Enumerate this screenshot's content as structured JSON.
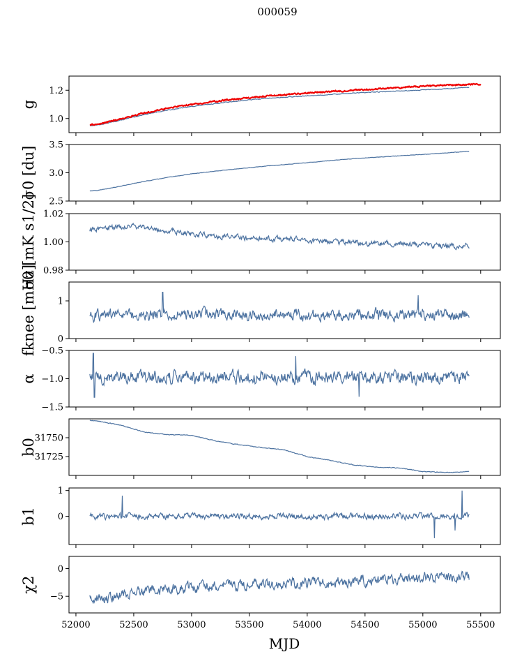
{
  "figure": {
    "title": "000059",
    "xlabel": "MJD"
  },
  "x_axis": {
    "range": [
      51940,
      55670
    ],
    "ticks": [
      52000,
      52500,
      53000,
      53500,
      54000,
      54500,
      55000,
      55500
    ],
    "tick_labels": [
      "52000",
      "52500",
      "53000",
      "53500",
      "54000",
      "54500",
      "55000",
      "55500"
    ]
  },
  "colors": {
    "series": "#4c72a0",
    "red": "#ee0000"
  },
  "chart_data": [
    {
      "type": "line",
      "id": "g",
      "ylabel": "g",
      "ylim": [
        0.9,
        1.3
      ],
      "yticks": [
        1.0,
        1.2
      ],
      "ytick_labels": [
        "1.0",
        "1.2"
      ],
      "series": [
        {
          "name": "g",
          "color": "#4c72a0",
          "x": [
            52120,
            52200,
            52400,
            52600,
            52800,
            53000,
            53300,
            53600,
            54000,
            54400,
            54800,
            55200,
            55400
          ],
          "values": [
            0.95,
            0.955,
            0.99,
            1.03,
            1.06,
            1.085,
            1.115,
            1.14,
            1.16,
            1.18,
            1.195,
            1.21,
            1.22
          ],
          "noise": 0.002
        },
        {
          "name": "g_reference",
          "color": "#ee0000",
          "x": [
            52120,
            52200,
            52400,
            52600,
            52800,
            53000,
            53300,
            53600,
            54000,
            54400,
            54800,
            55200,
            55500
          ],
          "values": [
            0.955,
            0.96,
            1.0,
            1.04,
            1.075,
            1.1,
            1.13,
            1.155,
            1.18,
            1.2,
            1.22,
            1.235,
            1.245
          ],
          "noise": 0.004
        }
      ]
    },
    {
      "type": "line",
      "id": "sigma0_du",
      "ylabel": "σ0 [du]",
      "ylim": [
        2.5,
        3.5
      ],
      "yticks": [
        2.5,
        3.0,
        3.5
      ],
      "ytick_labels": [
        "2.5",
        "3.0",
        "3.5"
      ],
      "series": [
        {
          "name": "sigma0",
          "color": "#4c72a0",
          "x": [
            52120,
            52200,
            52400,
            52600,
            52800,
            53000,
            53300,
            53600,
            54000,
            54400,
            54800,
            55200,
            55400
          ],
          "values": [
            2.68,
            2.69,
            2.77,
            2.85,
            2.92,
            2.98,
            3.05,
            3.11,
            3.18,
            3.25,
            3.3,
            3.35,
            3.38
          ],
          "noise": 0.003
        }
      ]
    },
    {
      "type": "line",
      "id": "sigma0_mk",
      "ylabel": "σ0 [mK s1/2]",
      "ylim": [
        0.98,
        1.02
      ],
      "yticks": [
        0.98,
        1.0,
        1.02
      ],
      "ytick_labels": [
        "0.98",
        "1.00",
        "1.02"
      ],
      "series": [
        {
          "name": "sigma0_norm",
          "color": "#4c72a0",
          "x": [
            52120,
            52300,
            52500,
            52700,
            52900,
            53100,
            53300,
            53600,
            53900,
            54200,
            54500,
            54800,
            55100,
            55400
          ],
          "values": [
            1.009,
            1.01,
            1.011,
            1.009,
            1.007,
            1.005,
            1.004,
            1.002,
            1.002,
            1.0,
            0.999,
            0.999,
            0.997,
            0.997
          ],
          "noise": 0.0015
        }
      ]
    },
    {
      "type": "line",
      "id": "fknee",
      "ylabel": "fknee [mHz]",
      "ylim": [
        0,
        1.5
      ],
      "yticks": [
        0,
        1
      ],
      "ytick_labels": [
        "0",
        "1"
      ],
      "series": [
        {
          "name": "fknee",
          "color": "#4c72a0",
          "x": [
            52120,
            55400
          ],
          "values": [
            0.62,
            0.62
          ],
          "noise": 0.12,
          "spikes": [
            [
              52750,
              1.23
            ],
            [
              54960,
              1.15
            ]
          ]
        }
      ]
    },
    {
      "type": "line",
      "id": "alpha",
      "ylabel": "α",
      "ylim": [
        -1.5,
        -0.5
      ],
      "yticks": [
        -1.5,
        -1.0,
        -0.5
      ],
      "ytick_labels": [
        "−1.5",
        "−1.0",
        "−0.5"
      ],
      "series": [
        {
          "name": "alpha",
          "color": "#4c72a0",
          "x": [
            52120,
            55400
          ],
          "values": [
            -0.97,
            -0.97
          ],
          "noise": 0.09,
          "spikes": [
            [
              52150,
              -0.55
            ],
            [
              52160,
              -1.33
            ],
            [
              54450,
              -1.32
            ],
            [
              53900,
              -0.6
            ]
          ]
        }
      ]
    },
    {
      "type": "line",
      "id": "b0",
      "ylabel": "b0",
      "ylim": [
        31700,
        31775
      ],
      "yticks": [
        31725,
        31750
      ],
      "ytick_labels": [
        "31725",
        "31750"
      ],
      "series": [
        {
          "name": "b0",
          "color": "#4c72a0",
          "x": [
            52120,
            52200,
            52400,
            52600,
            52800,
            53000,
            53200,
            53400,
            53600,
            53800,
            54000,
            54200,
            54400,
            54600,
            54800,
            55000,
            55200,
            55400
          ],
          "values": [
            31773,
            31772,
            31766,
            31757,
            31754,
            31753,
            31746,
            31741,
            31737,
            31734,
            31725,
            31720,
            31714,
            31711,
            31710,
            31705,
            31704,
            31705
          ],
          "noise": 0.4
        }
      ]
    },
    {
      "type": "line",
      "id": "b1",
      "ylabel": "b1",
      "ylim": [
        -1.1,
        1.1
      ],
      "yticks": [
        0,
        1
      ],
      "ytick_labels": [
        "0",
        "1"
      ],
      "series": [
        {
          "name": "b1",
          "color": "#4c72a0",
          "x": [
            52120,
            55400
          ],
          "values": [
            0.0,
            0.0
          ],
          "noise": 0.09,
          "spikes": [
            [
              52400,
              0.8
            ],
            [
              55340,
              1.0
            ],
            [
              55100,
              -0.85
            ],
            [
              55280,
              -0.55
            ]
          ]
        }
      ]
    },
    {
      "type": "line",
      "id": "chi2",
      "ylabel": "χ2",
      "ylim": [
        -8,
        2.2
      ],
      "yticks": [
        0,
        -5
      ],
      "ytick_labels": [
        "0",
        "−5"
      ],
      "series": [
        {
          "name": "chi2",
          "color": "#4c72a0",
          "x": [
            52120,
            52300,
            52600,
            52900,
            53200,
            53600,
            54000,
            54400,
            54800,
            55100,
            55400
          ],
          "values": [
            -5.5,
            -5.2,
            -4.2,
            -3.6,
            -3.2,
            -2.9,
            -2.6,
            -2.3,
            -2.0,
            -1.4,
            -1.6
          ],
          "noise": 0.75
        }
      ]
    }
  ]
}
